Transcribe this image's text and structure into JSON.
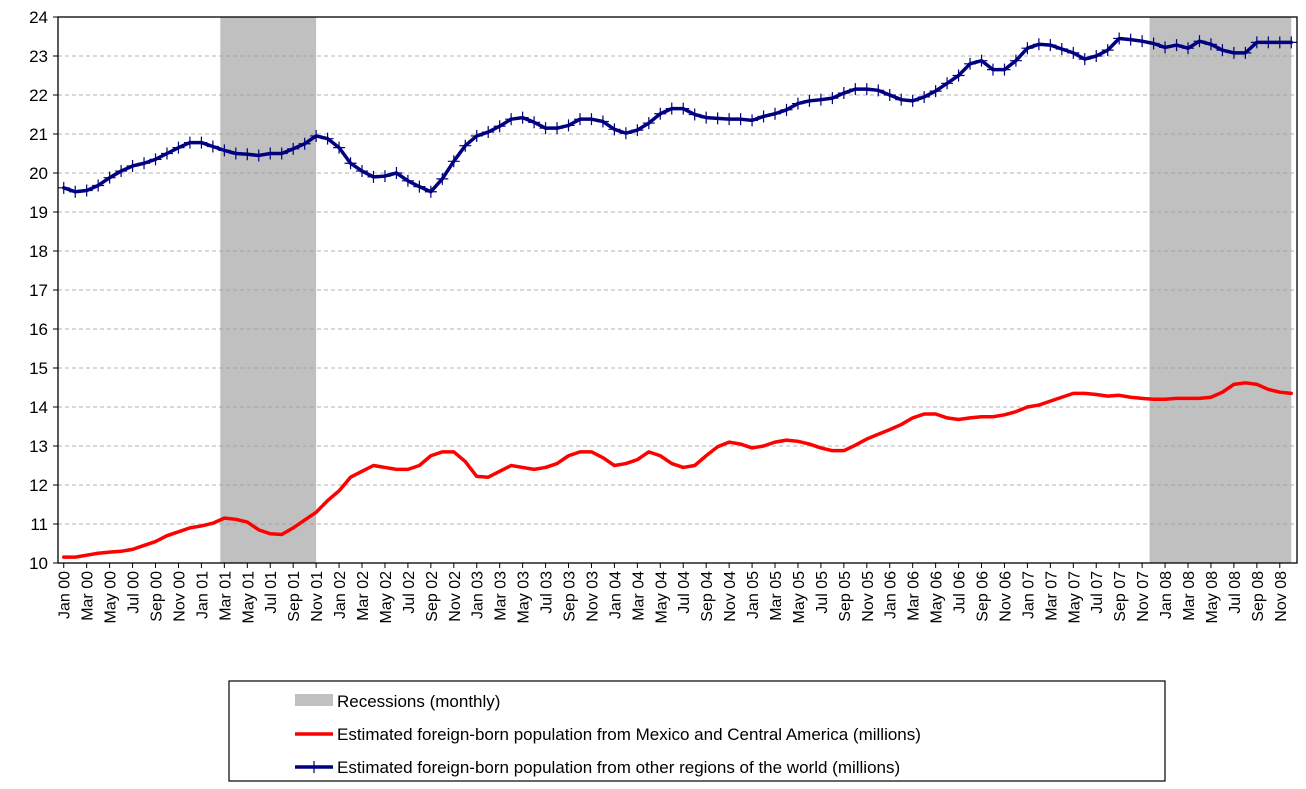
{
  "chart_data": {
    "type": "line",
    "title": "",
    "xlabel": "",
    "ylabel": "",
    "ylim": [
      10,
      24
    ],
    "yticks": [
      10,
      11,
      12,
      13,
      14,
      15,
      16,
      17,
      18,
      19,
      20,
      21,
      22,
      23,
      24
    ],
    "grid": "horizontal dashed",
    "legend_position": "bottom-center",
    "x": [
      "Jan 00",
      "Feb 00",
      "Mar 00",
      "Apr 00",
      "May 00",
      "Jun 00",
      "Jul 00",
      "Aug 00",
      "Sep 00",
      "Oct 00",
      "Nov 00",
      "Dec 00",
      "Jan 01",
      "Feb 01",
      "Mar 01",
      "Apr 01",
      "May 01",
      "Jun 01",
      "Jul 01",
      "Aug 01",
      "Sep 01",
      "Oct 01",
      "Nov 01",
      "Dec 01",
      "Jan 02",
      "Feb 02",
      "Mar 02",
      "Apr 02",
      "May 02",
      "Jun 02",
      "Jul 02",
      "Aug 02",
      "Sep 02",
      "Oct 02",
      "Nov 02",
      "Dec 02",
      "Jan 03",
      "Feb 03",
      "Mar 03",
      "Apr 03",
      "May 03",
      "Jun 03",
      "Jul 03",
      "Aug 03",
      "Sep 03",
      "Oct 03",
      "Nov 03",
      "Dec 03",
      "Jan 04",
      "Feb 04",
      "Mar 04",
      "Apr 04",
      "May 04",
      "Jun 04",
      "Jul 04",
      "Aug 04",
      "Sep 04",
      "Oct 04",
      "Nov 04",
      "Dec 04",
      "Jan 05",
      "Feb 05",
      "Mar 05",
      "Apr 05",
      "May 05",
      "Jun 05",
      "Jul 05",
      "Aug 05",
      "Sep 05",
      "Oct 05",
      "Nov 05",
      "Dec 05",
      "Jan 06",
      "Feb 06",
      "Mar 06",
      "Apr 06",
      "May 06",
      "Jun 06",
      "Jul 06",
      "Aug 06",
      "Sep 06",
      "Oct 06",
      "Nov 06",
      "Dec 06",
      "Jan 07",
      "Feb 07",
      "Mar 07",
      "Apr 07",
      "May 07",
      "Jun 07",
      "Jul 07",
      "Aug 07",
      "Sep 07",
      "Oct 07",
      "Nov 07",
      "Dec 07",
      "Jan 08",
      "Feb 08",
      "Mar 08",
      "Apr 08",
      "May 08",
      "Jun 08",
      "Jul 08",
      "Aug 08",
      "Sep 08",
      "Oct 08",
      "Nov 08",
      "Dec 08"
    ],
    "xtick_labels": [
      "Jan 00",
      "Mar 00",
      "May 00",
      "Jul 00",
      "Sep 00",
      "Nov 00",
      "Jan 01",
      "Mar 01",
      "May 01",
      "Jul 01",
      "Sep 01",
      "Nov 01",
      "Jan 02",
      "Mar 02",
      "May 02",
      "Jul 02",
      "Sep 02",
      "Nov 02",
      "Jan 03",
      "Mar 03",
      "May 03",
      "Jul 03",
      "Sep 03",
      "Nov 03",
      "Jan 04",
      "Mar 04",
      "May 04",
      "Jul 04",
      "Sep 04",
      "Nov 04",
      "Jan 05",
      "Mar 05",
      "May 05",
      "Jul 05",
      "Sep 05",
      "Nov 05",
      "Jan 06",
      "Mar 06",
      "May 06",
      "Jul 06",
      "Sep 06",
      "Nov 06",
      "Jan 07",
      "Mar 07",
      "May 07",
      "Jul 07",
      "Sep 07",
      "Nov 07",
      "Jan 08",
      "Mar 08",
      "May 08",
      "Jul 08",
      "Sep 08",
      "Nov 08"
    ],
    "recessions": [
      {
        "start": "Mar 01",
        "end": "Nov 01"
      },
      {
        "start": "Dec 07",
        "end": "Dec 08"
      }
    ],
    "series": [
      {
        "name": "Estimated foreign-born population from Mexico and Central America (millions)",
        "color": "#ff0000",
        "marker": "none",
        "values": [
          10.15,
          10.15,
          10.2,
          10.25,
          10.28,
          10.3,
          10.35,
          10.45,
          10.55,
          10.7,
          10.8,
          10.9,
          10.95,
          11.02,
          11.15,
          11.12,
          11.05,
          10.85,
          10.75,
          10.73,
          10.9,
          11.1,
          11.3,
          11.6,
          11.85,
          12.2,
          12.35,
          12.5,
          12.45,
          12.4,
          12.4,
          12.5,
          12.75,
          12.85,
          12.85,
          12.6,
          12.22,
          12.2,
          12.35,
          12.5,
          12.45,
          12.4,
          12.45,
          12.55,
          12.75,
          12.85,
          12.85,
          12.7,
          12.5,
          12.55,
          12.65,
          12.85,
          12.75,
          12.55,
          12.45,
          12.5,
          12.75,
          12.98,
          13.1,
          13.05,
          12.95,
          13.0,
          13.1,
          13.15,
          13.12,
          13.05,
          12.95,
          12.88,
          12.88,
          13.02,
          13.18,
          13.3,
          13.42,
          13.55,
          13.72,
          13.82,
          13.82,
          13.72,
          13.68,
          13.72,
          13.75,
          13.75,
          13.8,
          13.88,
          14.0,
          14.05,
          14.15,
          14.25,
          14.35,
          14.35,
          14.32,
          14.28,
          14.3,
          14.25,
          14.22,
          14.2,
          14.2,
          14.22,
          14.22,
          14.22,
          14.25,
          14.38,
          14.58,
          14.62,
          14.58,
          14.45,
          14.38,
          14.35
        ]
      },
      {
        "name": "Estimated foreign-born population from other regions of the world (millions)",
        "color": "#000080",
        "marker": "plus",
        "values": [
          19.62,
          19.52,
          19.55,
          19.68,
          19.88,
          20.05,
          20.18,
          20.25,
          20.35,
          20.5,
          20.65,
          20.78,
          20.78,
          20.68,
          20.58,
          20.5,
          20.48,
          20.45,
          20.5,
          20.5,
          20.62,
          20.75,
          20.95,
          20.88,
          20.65,
          20.25,
          20.05,
          19.9,
          19.92,
          20.0,
          19.8,
          19.65,
          19.52,
          19.85,
          20.3,
          20.7,
          20.95,
          21.05,
          21.2,
          21.38,
          21.42,
          21.3,
          21.15,
          21.15,
          21.22,
          21.38,
          21.38,
          21.32,
          21.12,
          21.02,
          21.1,
          21.28,
          21.52,
          21.65,
          21.65,
          21.5,
          21.42,
          21.4,
          21.38,
          21.38,
          21.35,
          21.45,
          21.52,
          21.62,
          21.78,
          21.85,
          21.88,
          21.92,
          22.05,
          22.15,
          22.15,
          22.12,
          22.0,
          21.88,
          21.85,
          21.95,
          22.1,
          22.3,
          22.5,
          22.8,
          22.88,
          22.65,
          22.65,
          22.88,
          23.2,
          23.3,
          23.28,
          23.18,
          23.08,
          22.92,
          23.0,
          23.15,
          23.45,
          23.42,
          23.38,
          23.32,
          23.22,
          23.28,
          23.2,
          23.38,
          23.3,
          23.15,
          23.08,
          23.08,
          23.35,
          23.35,
          23.35,
          23.35
        ]
      }
    ],
    "legend": [
      {
        "label": "Recessions (monthly)",
        "kind": "rect",
        "color": "#c0c0c0"
      },
      {
        "label": "Estimated foreign-born population from Mexico and Central America (millions)",
        "kind": "line",
        "color": "#ff0000"
      },
      {
        "label": "Estimated foreign-born population from other regions of the world (millions)",
        "kind": "line-plus",
        "color": "#000080"
      }
    ]
  }
}
